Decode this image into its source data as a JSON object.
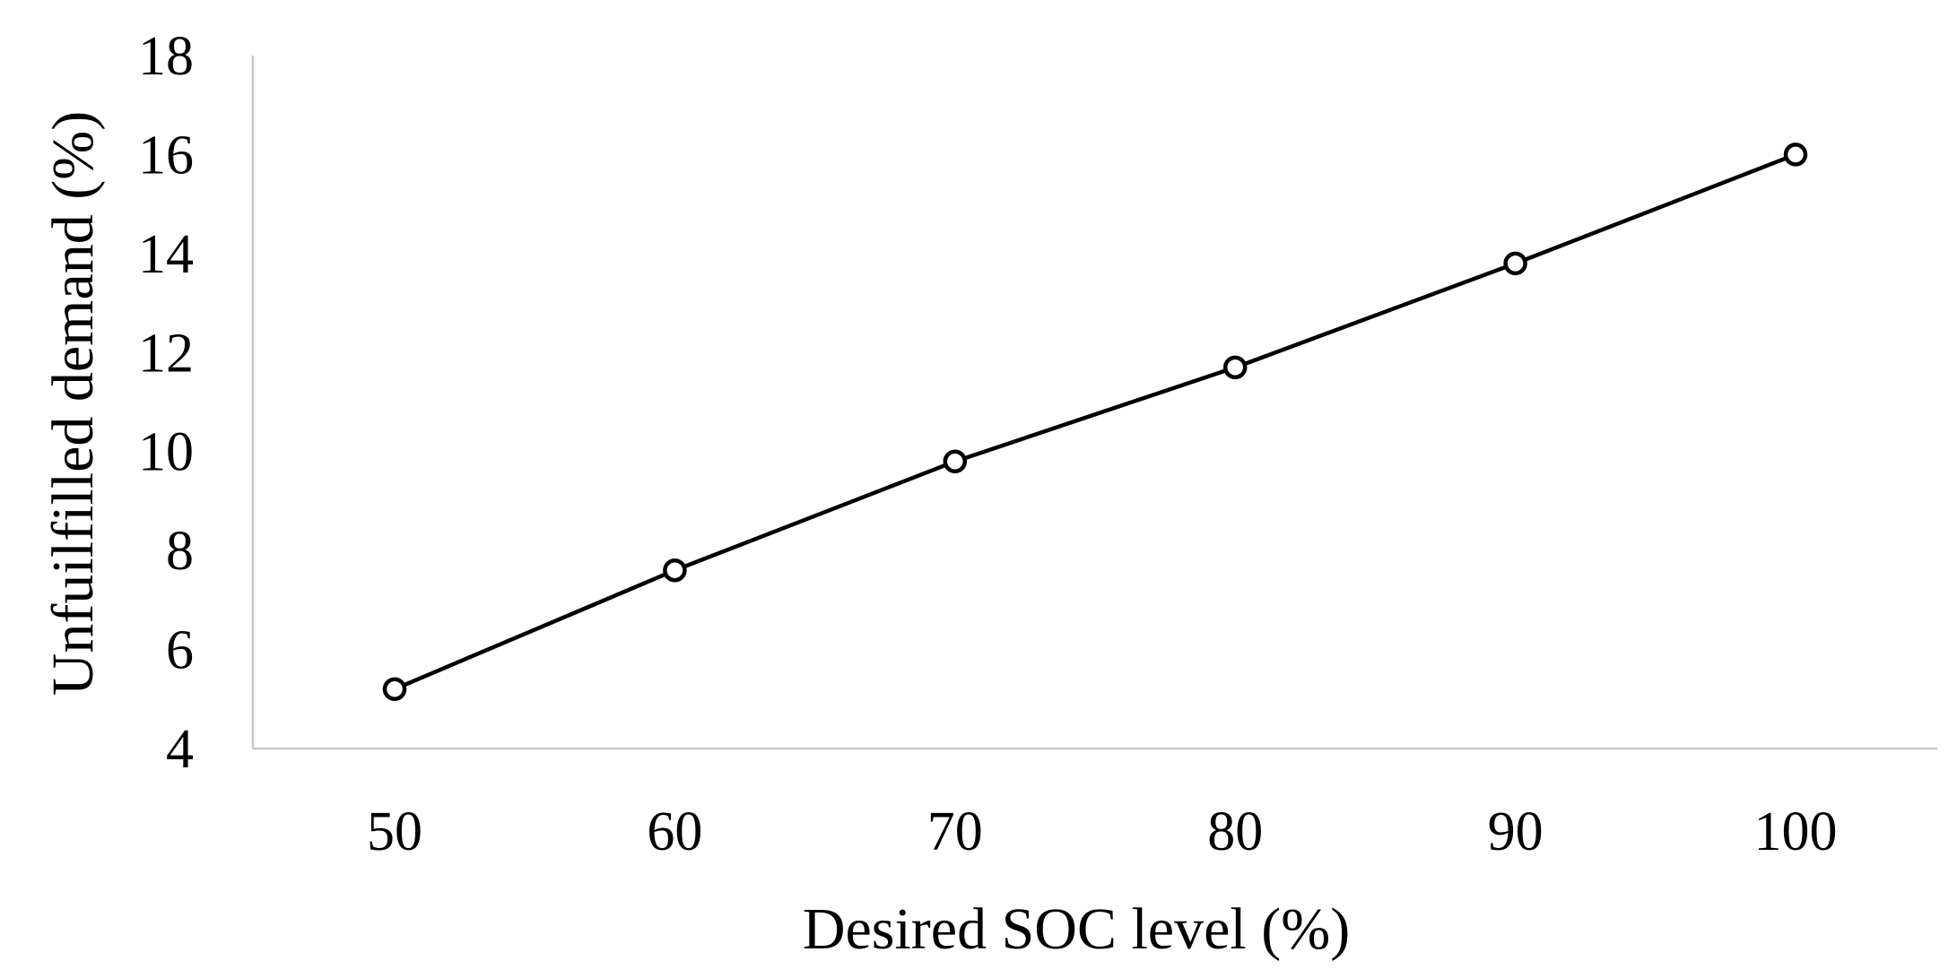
{
  "chart_data": {
    "type": "line",
    "title": "",
    "xlabel": "Desired SOC level (%)",
    "ylabel": "Unfuilfilled demand (%)",
    "x": [
      50,
      60,
      70,
      80,
      90,
      100
    ],
    "x_tick_labels": [
      "50",
      "60",
      "70",
      "80",
      "90",
      "100"
    ],
    "y_tick_labels": [
      "4",
      "6",
      "8",
      "10",
      "12",
      "14",
      "16",
      "18"
    ],
    "ylim": [
      4,
      18
    ],
    "y_ticks": [
      4,
      6,
      8,
      10,
      12,
      14,
      16,
      18
    ],
    "grid": false,
    "legend": "none",
    "series": [
      {
        "values": [
          5.2,
          7.6,
          9.8,
          11.7,
          13.8,
          16.0
        ],
        "color": "#000000",
        "marker": "open-circle"
      }
    ]
  }
}
